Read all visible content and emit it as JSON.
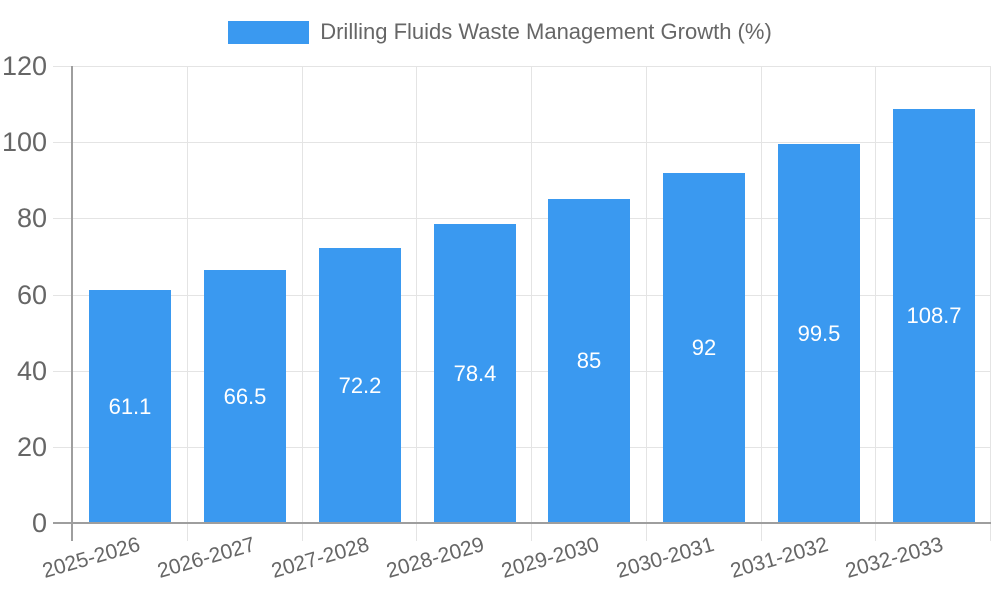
{
  "chart_data": {
    "type": "bar",
    "title": "Drilling Fluids Waste Management Growth (%)",
    "categories": [
      "2025-2026",
      "2026-2027",
      "2027-2028",
      "2028-2029",
      "2029-2030",
      "2030-2031",
      "2031-2032",
      "2032-2033"
    ],
    "values": [
      61.1,
      66.5,
      72.2,
      78.4,
      85,
      92,
      99.5,
      108.7
    ],
    "value_labels": [
      "61.1",
      "66.5",
      "72.2",
      "78.4",
      "85",
      "92",
      "99.5",
      "108.7"
    ],
    "xlabel": "",
    "ylabel": "",
    "ylim": [
      0,
      120
    ],
    "y_ticks": [
      0,
      20,
      40,
      60,
      80,
      100,
      120
    ],
    "grid": true,
    "legend_position": "top",
    "colors": {
      "bar": "#3A99F0",
      "bar_label": "#FFFFFF",
      "grid": "#E4E4E4",
      "axis": "#9E9E9E",
      "text": "#666666",
      "background": "#FFFFFF"
    }
  }
}
